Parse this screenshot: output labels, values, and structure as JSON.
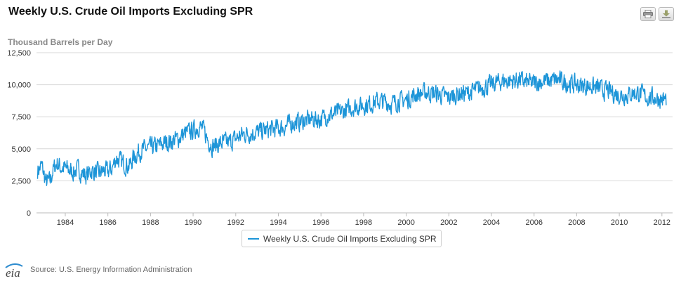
{
  "header": {
    "title": "Weekly U.S. Crude Oil Imports Excluding SPR",
    "print_icon": "print-icon",
    "download_icon": "download-icon"
  },
  "footer": {
    "logo_text": "eia",
    "source": "Source: U.S. Energy Information Administration"
  },
  "colors": {
    "series": "#1d95d8",
    "grid": "#d8d8d8",
    "axis": "#bbbbbb"
  },
  "chart_data": {
    "type": "line",
    "ylabel": "Thousand Barrels per Day",
    "xlabel": "",
    "xlim": [
      1982.65,
      2012.5
    ],
    "ylim": [
      0,
      12500
    ],
    "yticks": [
      0,
      2500,
      5000,
      7500,
      10000,
      12500
    ],
    "ytick_labels": [
      "0",
      "2,500",
      "5,000",
      "7,500",
      "10,000",
      "12,500"
    ],
    "xticks": [
      1984,
      1986,
      1988,
      1990,
      1992,
      1994,
      1996,
      1998,
      2000,
      2002,
      2004,
      2006,
      2008,
      2010,
      2012
    ],
    "xtick_labels": [
      "1984",
      "1986",
      "1988",
      "1990",
      "1992",
      "1994",
      "1996",
      "1998",
      "2000",
      "2002",
      "2004",
      "2006",
      "2008",
      "2010",
      "2012"
    ],
    "grid": true,
    "legend_position": "bottom-center",
    "series": [
      {
        "name": "Weekly U.S. Crude Oil Imports Excluding SPR",
        "x": [
          1982.7,
          1982.9,
          1983.0,
          1983.1,
          1983.3,
          1983.4,
          1983.6,
          1983.8,
          1984.0,
          1984.2,
          1984.4,
          1984.6,
          1984.8,
          1985.0,
          1985.2,
          1985.4,
          1985.6,
          1985.8,
          1986.0,
          1986.2,
          1986.4,
          1986.6,
          1986.8,
          1987.0,
          1987.2,
          1987.4,
          1987.6,
          1987.8,
          1988.0,
          1988.3,
          1988.6,
          1989.0,
          1989.3,
          1989.6,
          1990.0,
          1990.3,
          1990.5,
          1990.7,
          1990.9,
          1991.1,
          1991.4,
          1991.7,
          1992.0,
          1992.3,
          1992.6,
          1993.0,
          1993.3,
          1993.6,
          1994.0,
          1994.3,
          1994.6,
          1995.0,
          1995.3,
          1995.6,
          1996.0,
          1996.3,
          1996.6,
          1997.0,
          1997.3,
          1997.6,
          1998.0,
          1998.3,
          1998.6,
          1999.0,
          1999.3,
          1999.6,
          2000.0,
          2000.3,
          2000.6,
          2001.0,
          2001.3,
          2001.6,
          2002.0,
          2002.3,
          2002.6,
          2003.0,
          2003.3,
          2003.6,
          2004.0,
          2004.3,
          2004.6,
          2005.0,
          2005.3,
          2005.6,
          2005.9,
          2006.2,
          2006.5,
          2006.8,
          2007.1,
          2007.4,
          2007.7,
          2008.0,
          2008.3,
          2008.6,
          2008.9,
          2009.2,
          2009.5,
          2009.8,
          2010.1,
          2010.4,
          2010.7,
          2011.0,
          2011.3,
          2011.6,
          2011.9,
          2012.2
        ],
        "values": [
          3300,
          3700,
          3000,
          2400,
          2500,
          3200,
          3900,
          3500,
          3500,
          3300,
          3200,
          3400,
          3100,
          2900,
          3300,
          3200,
          3100,
          3300,
          3200,
          3500,
          4300,
          4000,
          3800,
          3600,
          4300,
          4700,
          4900,
          5000,
          5100,
          5200,
          5400,
          5600,
          5800,
          6200,
          6400,
          6800,
          6400,
          5700,
          5200,
          5300,
          5500,
          5500,
          5800,
          6100,
          6200,
          6300,
          6400,
          6500,
          6600,
          6700,
          7000,
          7100,
          7200,
          7300,
          7300,
          7600,
          7700,
          7900,
          8100,
          8300,
          8400,
          8500,
          8700,
          8700,
          8500,
          8700,
          8800,
          9100,
          9300,
          9400,
          9300,
          9200,
          9000,
          9200,
          9300,
          9400,
          9600,
          9800,
          10000,
          10200,
          10300,
          10300,
          10400,
          10200,
          10100,
          10200,
          10300,
          10300,
          10400,
          10200,
          10100,
          10000,
          9900,
          9900,
          9800,
          9600,
          9500,
          9300,
          9200,
          9200,
          9400,
          9300,
          9000,
          9000,
          8900,
          8800
        ]
      }
    ]
  }
}
